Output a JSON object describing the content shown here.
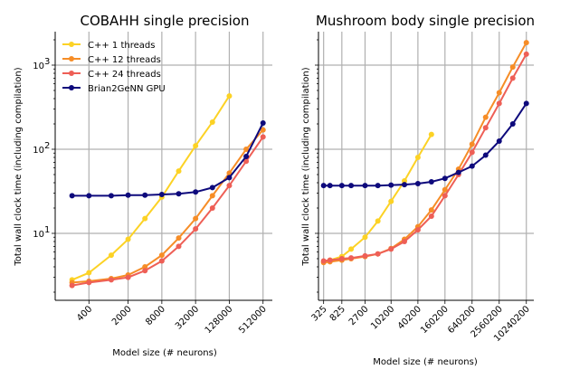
{
  "chart_data": [
    {
      "type": "line",
      "title": "COBAHH single precision",
      "xlabel": "Model size (# neurons)",
      "ylabel": "Total wall clock time (including compilation)",
      "xscale": "log",
      "yscale": "log",
      "xlim": [
        100,
        750000
      ],
      "ylim": [
        1.6,
        2500
      ],
      "xticks": [
        400,
        2000,
        8000,
        32000,
        128000,
        512000
      ],
      "xtick_labels": [
        "400",
        "2000",
        "8000",
        "32000",
        "128000",
        "512000"
      ],
      "yticks": [
        10,
        100,
        1000
      ],
      "ytick_labels": [
        "10",
        "10",
        "10"
      ],
      "ytick_exponents": [
        "1",
        "2",
        "3"
      ],
      "grid": true,
      "legend_position": "top-left",
      "series": [
        {
          "name": "C++  1 threads",
          "color": "#fcd225",
          "x": [
            200,
            400,
            1000,
            2000,
            4000,
            8000,
            16000,
            32000,
            64000,
            128000
          ],
          "y": [
            2.8,
            3.4,
            5.5,
            8.5,
            15,
            27,
            55,
            110,
            210,
            430
          ]
        },
        {
          "name": "C++ 12 threads",
          "color": "#f68d27",
          "x": [
            200,
            400,
            1000,
            2000,
            4000,
            8000,
            16000,
            32000,
            64000,
            128000,
            256000,
            512000
          ],
          "y": [
            2.6,
            2.7,
            2.9,
            3.2,
            4.0,
            5.5,
            8.8,
            15,
            28,
            52,
            100,
            170
          ]
        },
        {
          "name": "C++ 24 threads",
          "color": "#ee5f56",
          "x": [
            200,
            400,
            1000,
            2000,
            4000,
            8000,
            16000,
            32000,
            64000,
            128000,
            256000,
            512000
          ],
          "y": [
            2.4,
            2.6,
            2.8,
            3.0,
            3.6,
            4.7,
            7.0,
            11.3,
            20,
            37,
            72,
            140
          ]
        },
        {
          "name": "Brian2GeNN GPU",
          "color": "#0e0a7c",
          "x": [
            200,
            400,
            1000,
            2000,
            4000,
            8000,
            16000,
            32000,
            64000,
            128000,
            256000,
            512000
          ],
          "y": [
            28,
            28,
            28,
            28.5,
            28.5,
            29,
            29.5,
            31,
            35,
            46,
            82,
            205
          ]
        }
      ]
    },
    {
      "type": "line",
      "title": "Mushroom body single precision",
      "xlabel": "Model size (# neurons)",
      "ylabel": "Total wall clock time (including compilation)",
      "xscale": "log",
      "yscale": "log",
      "xlim": [
        250,
        15000000
      ],
      "ylim": [
        1.6,
        2500
      ],
      "xticks": [
        325,
        825,
        2700,
        10200,
        40200,
        160200,
        640200,
        2560200,
        10240200
      ],
      "xtick_labels": [
        "325",
        "825",
        "2700",
        "10200",
        "40200",
        "160200",
        "640200",
        "2560200",
        "10240200"
      ],
      "yticks": [
        10,
        100,
        1000
      ],
      "grid": true,
      "series": [
        {
          "name": "C++  1 threads",
          "color": "#fcd225",
          "x": [
            325,
            450,
            825,
            1325,
            2700,
            5200,
            10200,
            20200,
            40200,
            80200
          ],
          "y": [
            4.6,
            4.8,
            5.3,
            6.5,
            9.0,
            14,
            24,
            42,
            80,
            150
          ]
        },
        {
          "name": "C++ 12 threads",
          "color": "#f68d27",
          "x": [
            325,
            450,
            825,
            1325,
            2700,
            5200,
            10200,
            20200,
            40200,
            80200,
            160200,
            320200,
            640200,
            1280200,
            2560200,
            5120200,
            10240200
          ],
          "y": [
            4.5,
            4.6,
            4.8,
            5.0,
            5.3,
            5.7,
            6.6,
            8.5,
            12,
            19,
            33,
            58,
            115,
            240,
            470,
            950,
            1850
          ]
        },
        {
          "name": "C++ 24 threads",
          "color": "#ee5f56",
          "x": [
            325,
            450,
            825,
            1325,
            2700,
            5200,
            10200,
            20200,
            40200,
            80200,
            160200,
            320200,
            640200,
            1280200,
            2560200,
            5120200,
            10240200
          ],
          "y": [
            4.7,
            4.8,
            5.0,
            5.1,
            5.4,
            5.7,
            6.5,
            8.0,
            11,
            16,
            28,
            50,
            92,
            180,
            350,
            700,
            1350
          ]
        },
        {
          "name": "Brian2GeNN GPU",
          "color": "#0e0a7c",
          "x": [
            325,
            450,
            825,
            1325,
            2700,
            5200,
            10200,
            20200,
            40200,
            80200,
            160200,
            320200,
            640200,
            1280200,
            2560200,
            5120200,
            10240200
          ],
          "y": [
            37,
            37,
            37,
            37,
            37,
            37,
            37.5,
            38,
            39,
            41,
            45,
            53,
            63,
            85,
            125,
            200,
            350
          ]
        }
      ]
    }
  ]
}
